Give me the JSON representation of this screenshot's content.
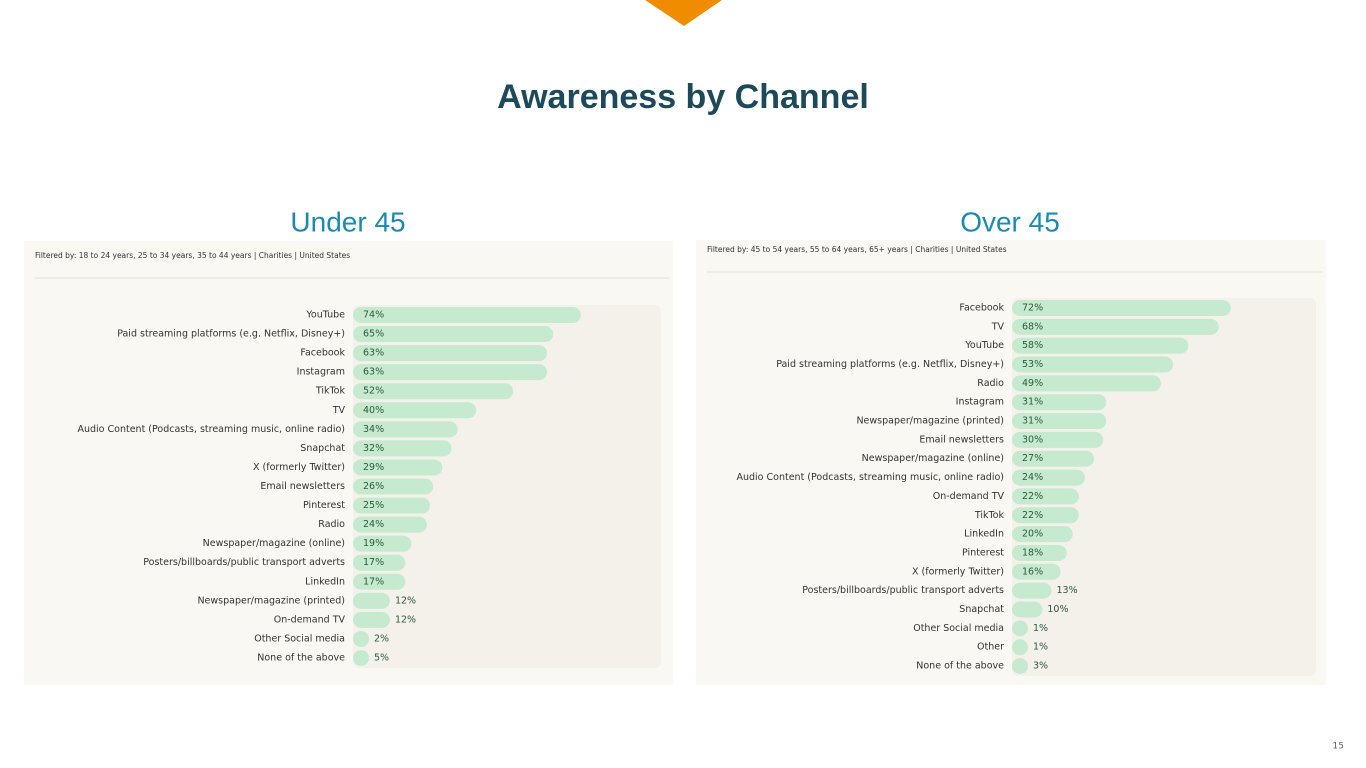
{
  "slide": {
    "title": "Awareness by Channel",
    "page_number": "15"
  },
  "chart_data": [
    {
      "type": "bar",
      "orientation": "horizontal",
      "title": "Under 45",
      "subtitle": "Filtered by: 18 to 24 years, 25 to 34 years, 35 to 44 years  |  Charities  |  United States",
      "categories": [
        "YouTube",
        "Paid streaming platforms (e.g. Netflix, Disney+)",
        "Facebook",
        "Instagram",
        "TikTok",
        "TV",
        "Audio Content (Podcasts, streaming music, online radio)",
        "Snapchat",
        "X (formerly Twitter)",
        "Email newsletters",
        "Pinterest",
        "Radio",
        "Newspaper/magazine (online)",
        "Posters/billboards/public transport adverts",
        "LinkedIn",
        "Newspaper/magazine (printed)",
        "On-demand TV",
        "Other Social media",
        "None of the above"
      ],
      "values": [
        74,
        65,
        63,
        63,
        52,
        40,
        34,
        32,
        29,
        26,
        25,
        24,
        19,
        17,
        17,
        12,
        12,
        2,
        5
      ],
      "value_labels": [
        "74%",
        "65%",
        "63%",
        "63%",
        "52%",
        "40%",
        "34%",
        "32%",
        "29%",
        "26%",
        "25%",
        "24%",
        "19%",
        "17%",
        "17%",
        "12%",
        "12%",
        "2%",
        "5%"
      ],
      "color": "#c5ead0",
      "xlim": [
        0,
        100
      ]
    },
    {
      "type": "bar",
      "orientation": "horizontal",
      "title": "Over 45",
      "subtitle": "Filtered by: 45 to 54 years, 55 to 64 years, 65+ years  |  Charities  |  United States",
      "categories": [
        "Facebook",
        "TV",
        "YouTube",
        "Paid streaming platforms (e.g. Netflix, Disney+)",
        "Radio",
        "Instagram",
        "Newspaper/magazine (printed)",
        "Email newsletters",
        "Newspaper/magazine (online)",
        "Audio Content (Podcasts, streaming music, online radio)",
        "On-demand TV",
        "TikTok",
        "LinkedIn",
        "Pinterest",
        "X (formerly Twitter)",
        "Posters/billboards/public transport adverts",
        "Snapchat",
        "Other Social media",
        "Other",
        "None of the above"
      ],
      "values": [
        72,
        68,
        58,
        53,
        49,
        31,
        31,
        30,
        27,
        24,
        22,
        22,
        20,
        18,
        16,
        13,
        10,
        1,
        1,
        3
      ],
      "value_labels": [
        "72%",
        "68%",
        "58%",
        "53%",
        "49%",
        "31%",
        "31%",
        "30%",
        "27%",
        "24%",
        "22%",
        "22%",
        "20%",
        "18%",
        "16%",
        "13%",
        "10%",
        "1%",
        "1%",
        "3%"
      ],
      "color": "#c5ead0",
      "xlim": [
        0,
        100
      ]
    }
  ]
}
